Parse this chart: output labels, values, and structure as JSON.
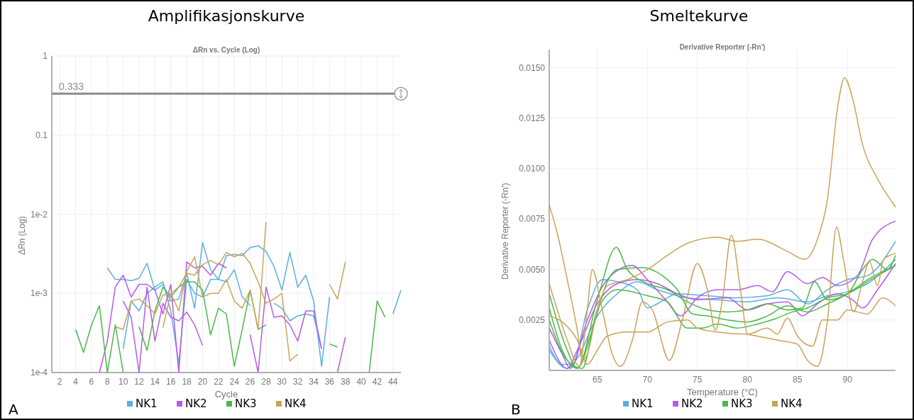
{
  "chart_data": [
    {
      "type": "line",
      "title": "Amplifikasjonskurve",
      "subtitle": "ΔRn vs. Cycle (Log)",
      "xlabel": "Cycle",
      "ylabel": "ΔRn (Log)",
      "log": true,
      "grid": true,
      "legend": "bottom",
      "xlim": [
        1,
        45
      ],
      "xticks": [
        2,
        4,
        6,
        8,
        10,
        12,
        14,
        16,
        18,
        20,
        22,
        24,
        26,
        28,
        30,
        32,
        34,
        36,
        38,
        40,
        42,
        44
      ],
      "ylim": [
        0.0001,
        1
      ],
      "yticks": [
        {
          "value": 0.0001,
          "label": "1e-4"
        },
        {
          "value": 0.001,
          "label": "1e-3"
        },
        {
          "value": 0.01,
          "label": "1e-2"
        },
        0.1,
        1
      ],
      "ref_lines": [
        {
          "axis": "y",
          "value": 0.333,
          "label": "0.333",
          "color": "#8c8c8c"
        }
      ],
      "annotations": [
        "A"
      ],
      "series": [
        {
          "name": "NK1",
          "color": "#5aaee0",
          "x": [
            8,
            9,
            10,
            11,
            12,
            13,
            14,
            15,
            16,
            17,
            18,
            19,
            20,
            21,
            22,
            23,
            24,
            25,
            26,
            27,
            28,
            29,
            30,
            31,
            32,
            33,
            34,
            35,
            36,
            37,
            44,
            45
          ],
          "values": [
            0.0021,
            0.0015,
            0.0015,
            0.00145,
            0.00155,
            0.0024,
            0.0011,
            0.0013,
            0.0008,
            0.00085,
            0.0018,
            0.00065,
            0.0044,
            0.002,
            0.0015,
            0.003,
            0.0031,
            0.003,
            0.0038,
            0.004,
            0.0034,
            0.0022,
            0.0011,
            0.0033,
            0.0012,
            0.0017,
            0.0008,
            0.00012,
            0.0009,
            null,
            0.00055,
            0.0011
          ]
        },
        {
          "color": "#5aaee0",
          "x": [
            10,
            11,
            12,
            13,
            14,
            15,
            16,
            17,
            18,
            19,
            20,
            21,
            22,
            23,
            24,
            25,
            26,
            27,
            28,
            29,
            30,
            31,
            32,
            33,
            34,
            35
          ],
          "values": [
            0.0002,
            0.0008,
            0.0006,
            0.001,
            0.0012,
            0.0014,
            0.0006,
            0.00013,
            0.0015,
            0.001,
            0.0009,
            0.0015,
            0.0015,
            0.0014,
            0.002,
            0.0009,
            0.0007,
            null,
            null,
            0.00075,
            0.00065,
            0.00045,
            0.00052,
            0.00055,
            0.00052,
            0.0002
          ]
        },
        {
          "name": "NK2",
          "color": "#b65be6",
          "x": [
            7,
            8,
            9,
            10,
            11,
            12,
            13,
            14,
            15,
            16,
            17,
            18,
            19,
            20,
            21,
            22,
            23
          ],
          "values": [
            0.0001,
            0.00025,
            0.0012,
            0.0017,
            0.0009,
            0.0013,
            0.0013,
            0.0011,
            0.00055,
            0.0013,
            0.0001,
            0.0025,
            0.0021,
            0.0022,
            0.0017,
            0.0024,
            0.0021
          ]
        },
        {
          "color": "#b65be6",
          "x": [
            10,
            11,
            12,
            13,
            14,
            15,
            16,
            17,
            18,
            19,
            20,
            21,
            26,
            27,
            28,
            29,
            30,
            31,
            32,
            33,
            34,
            35,
            36,
            37,
            38
          ],
          "values": [
            0.0008,
            0.0005,
            0.0001,
            0.0012,
            0.00025,
            0.00075,
            0.0005,
            0.00045,
            0.00058,
            0.0004,
            0.00022,
            null,
            0.0003,
            0.0001,
            0.0012,
            0.0005,
            0.00052,
            0.0004,
            0.00025,
            0.0006,
            0.0006,
            0.0002,
            null,
            0.0001,
            0.00028
          ]
        },
        {
          "name": "NK3",
          "color": "#4cb84a",
          "x": [
            4,
            5,
            6,
            7,
            8,
            9,
            10
          ],
          "values": [
            0.00035,
            0.00018,
            0.0004,
            0.0007,
            0.0001,
            0.0004,
            0.0001
          ]
        },
        {
          "color": "#4cb84a",
          "x": [
            12,
            13,
            14,
            15,
            16,
            17,
            18,
            19,
            20,
            21,
            22,
            23,
            24,
            25,
            26,
            27,
            28,
            29,
            36,
            37,
            38,
            41,
            42,
            43
          ],
          "values": [
            0.00038,
            0.00019,
            0.0006,
            0.0012,
            0.0009,
            0.0012,
            0.0014,
            0.0014,
            0.0011,
            0.0003,
            0.00065,
            0.00055,
            0.00012,
            0.00035,
            0.0011,
            0.00035,
            0.0004,
            null,
            0.00023,
            0.00021,
            null,
            0.0001,
            0.0008,
            0.0005
          ]
        },
        {
          "name": "NK4",
          "color": "#c9a45a",
          "x": [
            9,
            10,
            11,
            12,
            13,
            14,
            15,
            16,
            17,
            18,
            19,
            20,
            21,
            22,
            23,
            24,
            25,
            26,
            27,
            28
          ],
          "values": [
            0.00038,
            0.00035,
            0.0008,
            0.00085,
            0.0007,
            0.00055,
            0.00095,
            0.001,
            0.0006,
            0.0019,
            0.0029,
            0.0009,
            0.001,
            0.001,
            0.0015,
            0.0008,
            0.00065,
            0.0011,
            0.00035,
            0.008
          ]
        },
        {
          "color": "#c9a45a",
          "x": [
            15,
            16,
            17,
            18,
            19,
            20,
            21,
            22,
            23,
            24,
            25,
            26,
            27,
            28,
            29,
            30,
            31,
            32,
            33,
            36,
            37,
            38
          ],
          "values": [
            0.00037,
            0.001,
            0.0012,
            0.0018,
            0.0017,
            0.0023,
            0.0026,
            0.0023,
            0.0033,
            0.0029,
            0.0032,
            0.0024,
            0.0014,
            0.00075,
            0.00085,
            0.001,
            0.00014,
            0.00017,
            null,
            0.0013,
            0.00085,
            0.0025
          ]
        }
      ]
    },
    {
      "type": "line",
      "title": "Smeltekurve",
      "subtitle": "Derivative Reporter (-Rn')",
      "xlabel": "Temperature (°C)",
      "ylabel": "Derivative Reporter (-Rn')",
      "grid": true,
      "legend": "bottom",
      "xlim": [
        60.2,
        94.8
      ],
      "xticks": [
        65,
        70,
        75,
        80,
        85,
        90
      ],
      "ylim": [
        0,
        0.0159
      ],
      "yticks": [
        0.0025,
        {
          "value": 0.005,
          "label": "0.0050"
        },
        0.0075,
        {
          "value": 0.01,
          "label": "0.0100"
        },
        0.0125,
        {
          "value": 0.015,
          "label": "0.0150"
        }
      ],
      "annotations": [
        "B"
      ],
      "series": [
        {
          "name": "NK1",
          "color": "#5aaee0",
          "x": [
            60.2,
            61.5,
            62.5,
            64,
            65.5,
            67,
            69,
            70,
            71,
            73,
            76,
            79,
            82,
            84,
            86,
            88,
            90,
            92,
            94.8
          ],
          "values": [
            0.0012,
            0.0003,
            0.0003,
            0.003,
            0.0045,
            0.0044,
            0.004,
            0.0031,
            0.0033,
            0.0038,
            0.0037,
            0.0036,
            0.0037,
            0.004,
            0.0033,
            0.004,
            0.0045,
            0.0047,
            0.0064
          ]
        },
        {
          "color": "#5aaee0",
          "x": [
            60.2,
            62,
            63,
            65,
            67,
            69,
            71,
            74,
            77,
            80,
            83,
            86,
            88,
            90,
            92,
            94.8
          ],
          "values": [
            0.001,
            0.0001,
            0.0006,
            0.0027,
            0.0038,
            0.0044,
            0.004,
            0.0036,
            0.0035,
            0.0034,
            0.0036,
            0.0034,
            0.0037,
            0.0039,
            0.0043,
            0.0055
          ]
        },
        {
          "name": "NK2",
          "color": "#b65be6",
          "x": [
            60.2,
            61.5,
            62.3,
            64,
            66,
            68.5,
            70,
            72,
            73.3,
            75,
            77,
            79,
            81,
            82.5,
            84,
            86,
            87.5,
            89,
            91,
            92.5,
            94.8
          ],
          "values": [
            0.0021,
            0.0008,
            0.0001,
            0.0025,
            0.0045,
            0.0052,
            0.0045,
            0.0034,
            0.0027,
            0.0036,
            0.004,
            0.004,
            0.0042,
            0.0039,
            0.0049,
            0.0043,
            0.0046,
            0.0042,
            0.0047,
            0.0065,
            0.0074
          ]
        },
        {
          "color": "#b65be6",
          "x": [
            60.2,
            62,
            63,
            65,
            67,
            69,
            71,
            73,
            75,
            78,
            80,
            82,
            84,
            85.5,
            87,
            89,
            90.5,
            91.5,
            93,
            94.8
          ],
          "values": [
            0.0015,
            0.0001,
            0.001,
            0.0033,
            0.0043,
            0.0045,
            0.0043,
            0.0038,
            0.0035,
            0.0036,
            0.003,
            0.0033,
            0.0034,
            0.0027,
            0.0033,
            0.0038,
            0.0035,
            0.0031,
            0.004,
            0.0053
          ]
        },
        {
          "name": "NK3",
          "color": "#4cb84a",
          "x": [
            60.2,
            62,
            63,
            65,
            66.9,
            68,
            70,
            72,
            74,
            76,
            78,
            80,
            82,
            84,
            85.5,
            86.7,
            88,
            90,
            91.5,
            92.5,
            94,
            94.8
          ],
          "values": [
            0.0038,
            0.001,
            0.0001,
            0.0035,
            0.0061,
            0.005,
            0.0043,
            0.004,
            0.0034,
            0.003,
            0.0029,
            0.003,
            0.0033,
            0.003,
            0.0031,
            0.0044,
            0.0035,
            0.0038,
            0.005,
            0.0055,
            0.005,
            0.0057
          ]
        },
        {
          "color": "#4cb84a",
          "x": [
            60.2,
            61.5,
            63,
            64.5,
            66,
            67,
            69.5,
            71.5,
            73,
            74.5,
            76,
            78,
            80,
            82,
            84,
            86,
            88,
            90,
            92,
            94.8
          ],
          "values": [
            0.0031,
            0.001,
            0.0001,
            0.002,
            0.0044,
            0.005,
            0.0051,
            0.0047,
            0.004,
            0.0028,
            0.0027,
            0.0025,
            0.0024,
            0.0027,
            0.0032,
            0.0029,
            0.0033,
            0.0038,
            0.0045,
            0.0052
          ]
        },
        {
          "color": "#4cb84a",
          "x": [
            60.2,
            62,
            63.5,
            65,
            67,
            70,
            72,
            74,
            75.5,
            77,
            79,
            81,
            83,
            84.5,
            86,
            88,
            90,
            92,
            94.8
          ],
          "values": [
            0.0025,
            0.0005,
            0.0001,
            0.003,
            0.004,
            0.0037,
            0.0034,
            0.0021,
            0.0021,
            0.0023,
            0.0021,
            0.0023,
            0.0026,
            0.0029,
            0.0031,
            0.0036,
            0.0038,
            0.0044,
            0.0052
          ]
        },
        {
          "name": "NK4",
          "color": "#c9a45a",
          "x": [
            60.2,
            61,
            62,
            63,
            63.5,
            64,
            65,
            66,
            68,
            70,
            72,
            74,
            77,
            79,
            81,
            84,
            85.7,
            87,
            88,
            89,
            89.7,
            90.5,
            91.5,
            93,
            94.8
          ],
          "values": [
            0.0082,
            0.0068,
            0.0045,
            0.002,
            0.0005,
            0.0008,
            0.003,
            0.0042,
            0.0045,
            0.005,
            0.0057,
            0.0063,
            0.0066,
            0.0064,
            0.0065,
            0.0059,
            0.0055,
            0.0065,
            0.0085,
            0.013,
            0.0145,
            0.0135,
            0.0112,
            0.0095,
            0.0081
          ]
        },
        {
          "color": "#c9a45a",
          "x": [
            60.2,
            61,
            62,
            63.2,
            64,
            64.5,
            65.5,
            66.5,
            67.3,
            68.5,
            69.5,
            70.5,
            72.2,
            73.5,
            75,
            76,
            76.8,
            77.5,
            78.4,
            79.3,
            80,
            81,
            83,
            85,
            86,
            87,
            88,
            88.9,
            89.6,
            90.6,
            91.5,
            92.2,
            93,
            93.6,
            94.8
          ],
          "values": [
            0.0043,
            0.003,
            0.0015,
            0.0002,
            0.003,
            0.005,
            0.003,
            0.0008,
            0.0002,
            0.0015,
            0.0034,
            0.003,
            0.0005,
            0.0025,
            0.0053,
            0.004,
            0.002,
            0.0035,
            0.0067,
            0.004,
            0.0018,
            0.0017,
            0.0015,
            0.0013,
            0.0005,
            0.0002,
            0.0025,
            0.0071,
            0.0055,
            0.0029,
            0.0044,
            0.0054,
            0.0042,
            0.0055,
            0.0058
          ]
        },
        {
          "color": "#c9a45a",
          "x": [
            60.2,
            61.5,
            63,
            64,
            65,
            66,
            68,
            70,
            72,
            74,
            75,
            77,
            80,
            82,
            83,
            84,
            85,
            86.5,
            87.5,
            89,
            90,
            92,
            93.5,
            94.8
          ],
          "values": [
            0.0027,
            0.0024,
            0.0015,
            0.0003,
            0.001,
            0.0017,
            0.0019,
            0.0019,
            0.0024,
            0.0025,
            0.0021,
            0.0019,
            0.0018,
            0.0021,
            0.0018,
            0.0026,
            0.0017,
            0.0012,
            0.0025,
            0.0025,
            0.003,
            0.0028,
            0.0036,
            0.0032
          ]
        }
      ]
    }
  ]
}
